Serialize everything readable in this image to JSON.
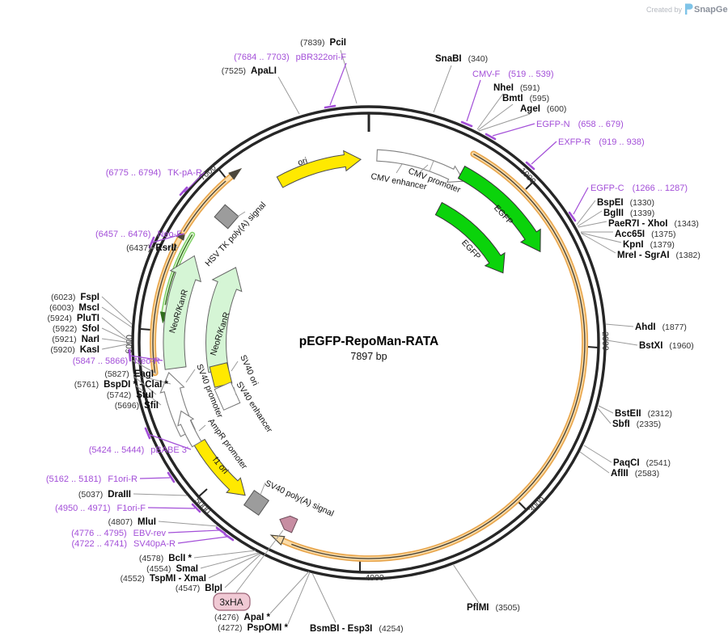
{
  "watermark": {
    "created_by": "Created by",
    "brand": "SnapGene"
  },
  "plasmid": {
    "name": "pEGFP-RepoMan-RATA",
    "size_label": "7897 bp"
  },
  "ticks": [
    "1000",
    "2000",
    "3000",
    "4000",
    "5000",
    "6000",
    "7000"
  ],
  "features": {
    "ori": "ori",
    "cmv_enhancer": "CMV enhancer",
    "cmv_promoter": "CMV promoter",
    "egfp": "EGFP",
    "hsv_tk_polya": "HSV TK poly(A) signal",
    "neor_kanr": "NeoR/KanR",
    "sv40_ori": "SV40 ori",
    "sv40_enhancer": "SV40 enhancer",
    "sv40_promoter": "SV40 promoter",
    "ampr_promoter": "AmpR promoter",
    "f1_ori": "f1 ori",
    "sv40_polya": "SV40 poly(A) signal",
    "tag_3xha": "3xHA"
  },
  "enzymes": [
    {
      "name": "SnaBI",
      "num": "(340)"
    },
    {
      "name": "PciI",
      "num": "(7839)"
    },
    {
      "name": "ApaLI",
      "num": "(7525)"
    },
    {
      "name": "NheI",
      "num": "(591)"
    },
    {
      "name": "BmtI",
      "num": "(595)"
    },
    {
      "name": "AgeI",
      "num": "(600)"
    },
    {
      "name": "BspEI",
      "num": "(1330)"
    },
    {
      "name": "BglII",
      "num": "(1339)"
    },
    {
      "name": "PaeR7I - XhoI",
      "num": "(1343)"
    },
    {
      "name": "Acc65I",
      "num": "(1375)"
    },
    {
      "name": "KpnI",
      "num": "(1379)"
    },
    {
      "name": "MreI - SgrAI",
      "num": "(1382)"
    },
    {
      "name": "AhdI",
      "num": "(1877)"
    },
    {
      "name": "BstXI",
      "num": "(1960)"
    },
    {
      "name": "BstEII",
      "num": "(2312)"
    },
    {
      "name": "SbfI",
      "num": "(2335)"
    },
    {
      "name": "PaqCI",
      "num": "(2541)"
    },
    {
      "name": "AflII",
      "num": "(2583)"
    },
    {
      "name": "PflMI",
      "num": "(3505)"
    },
    {
      "name": "BsmBI - Esp3I",
      "num": "(4254)"
    },
    {
      "name": "ApaI *",
      "num": "(4276)"
    },
    {
      "name": "PspOMI *",
      "num": "(4272)"
    },
    {
      "name": "BlpI",
      "num": "(4547)"
    },
    {
      "name": "TspMI - XmaI",
      "num": "(4552)"
    },
    {
      "name": "SmaI",
      "num": "(4554)"
    },
    {
      "name": "BclI *",
      "num": "(4578)"
    },
    {
      "name": "MluI",
      "num": "(4807)"
    },
    {
      "name": "DraIII",
      "num": "(5037)"
    },
    {
      "name": "SfiI",
      "num": "(5696)"
    },
    {
      "name": "StuI",
      "num": "(5742)"
    },
    {
      "name": "BspDI * - ClaI *",
      "num": "(5761)"
    },
    {
      "name": "EagI",
      "num": "(5827)"
    },
    {
      "name": "KasI",
      "num": "(5920)"
    },
    {
      "name": "NarI",
      "num": "(5921)"
    },
    {
      "name": "SfoI",
      "num": "(5922)"
    },
    {
      "name": "PluTI",
      "num": "(5924)"
    },
    {
      "name": "MscI",
      "num": "(6003)"
    },
    {
      "name": "FspI",
      "num": "(6023)"
    },
    {
      "name": "RsrII",
      "num": "(6437)"
    }
  ],
  "primers": [
    {
      "name": "CMV-F",
      "range": "(519 .. 539)"
    },
    {
      "name": "EGFP-N",
      "range": "(658 .. 679)"
    },
    {
      "name": "EXFP-R",
      "range": "(919 .. 938)"
    },
    {
      "name": "EGFP-C",
      "range": "(1266 .. 1287)"
    },
    {
      "name": "SV40pA-R",
      "range": "(4722 .. 4741)"
    },
    {
      "name": "EBV-rev",
      "range": "(4776 .. 4795)"
    },
    {
      "name": "F1ori-F",
      "range": "(4950 .. 4971)"
    },
    {
      "name": "F1ori-R",
      "range": "(5162 .. 5181)"
    },
    {
      "name": "pBABE 3'",
      "range": "(5424 .. 5444)"
    },
    {
      "name": "Neo-R",
      "range": "(5847 .. 5866)"
    },
    {
      "name": "Neo-F",
      "range": "(6457 .. 6476)"
    },
    {
      "name": "TK-pA-R",
      "range": "(6775 .. 6794)"
    },
    {
      "name": "pBR322ori-F",
      "range": "(7684 .. 7703)"
    }
  ],
  "colors": {
    "primer_purple": "#A34FD8",
    "egfp_green": "#0BD30B",
    "ori_yellow": "#FFE900",
    "neor_pale_green": "#D5F5D5",
    "insert_orange": "#E9A74E",
    "polya_gray": "#9C9C9C",
    "ha_mauve": "#C78DA2",
    "backbone_black": "#262626"
  }
}
